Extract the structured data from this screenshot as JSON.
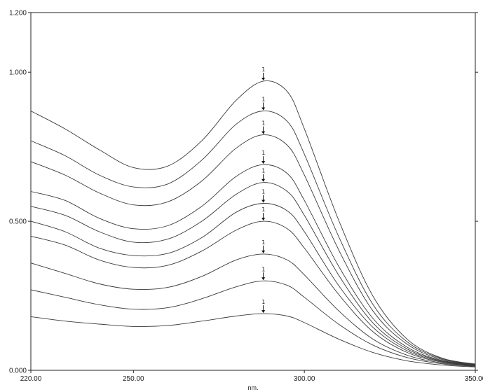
{
  "chart_data": {
    "type": "line",
    "title": "",
    "xlabel": "nm.",
    "ylabel": "",
    "xlim": [
      220,
      350
    ],
    "ylim": [
      0,
      1.2
    ],
    "x_ticks": [
      {
        "value": 220,
        "label": "220.00"
      },
      {
        "value": 250,
        "label": "250.00"
      },
      {
        "value": 300,
        "label": "300.00"
      },
      {
        "value": 350,
        "label": "350.00"
      }
    ],
    "y_ticks": [
      {
        "value": 0,
        "label": "0.000"
      },
      {
        "value": 0.5,
        "label": "0.500"
      },
      {
        "value": 1.0,
        "label": "1.000"
      },
      {
        "value": 1.2,
        "label": "1.200"
      }
    ],
    "peak_marker_x": 288,
    "peak_marker_text": "1",
    "grid": false,
    "legend": "none",
    "colors": {
      "line": "#3a3a3a",
      "axis": "#222222",
      "background": "#ffffff"
    },
    "series": [
      {
        "values": [
          [
            220,
            0.18
          ],
          [
            230,
            0.165
          ],
          [
            240,
            0.155
          ],
          [
            250,
            0.147
          ],
          [
            260,
            0.15
          ],
          [
            270,
            0.165
          ],
          [
            280,
            0.182
          ],
          [
            288,
            0.19
          ],
          [
            295,
            0.182
          ],
          [
            300,
            0.16
          ],
          [
            310,
            0.105
          ],
          [
            320,
            0.06
          ],
          [
            330,
            0.032
          ],
          [
            340,
            0.018
          ],
          [
            350,
            0.011
          ]
        ]
      },
      {
        "values": [
          [
            220,
            0.27
          ],
          [
            230,
            0.245
          ],
          [
            240,
            0.22
          ],
          [
            250,
            0.205
          ],
          [
            260,
            0.21
          ],
          [
            270,
            0.24
          ],
          [
            280,
            0.28
          ],
          [
            288,
            0.3
          ],
          [
            295,
            0.285
          ],
          [
            300,
            0.245
          ],
          [
            310,
            0.155
          ],
          [
            320,
            0.085
          ],
          [
            330,
            0.043
          ],
          [
            340,
            0.022
          ],
          [
            350,
            0.013
          ]
        ]
      },
      {
        "values": [
          [
            220,
            0.36
          ],
          [
            230,
            0.325
          ],
          [
            240,
            0.29
          ],
          [
            250,
            0.272
          ],
          [
            260,
            0.278
          ],
          [
            270,
            0.315
          ],
          [
            280,
            0.37
          ],
          [
            288,
            0.39
          ],
          [
            295,
            0.37
          ],
          [
            300,
            0.32
          ],
          [
            310,
            0.2
          ],
          [
            320,
            0.105
          ],
          [
            330,
            0.051
          ],
          [
            340,
            0.025
          ],
          [
            350,
            0.014
          ]
        ]
      },
      {
        "values": [
          [
            220,
            0.45
          ],
          [
            230,
            0.42
          ],
          [
            240,
            0.37
          ],
          [
            250,
            0.345
          ],
          [
            260,
            0.352
          ],
          [
            270,
            0.4
          ],
          [
            280,
            0.47
          ],
          [
            288,
            0.5
          ],
          [
            295,
            0.475
          ],
          [
            300,
            0.41
          ],
          [
            310,
            0.255
          ],
          [
            320,
            0.13
          ],
          [
            330,
            0.06
          ],
          [
            340,
            0.028
          ],
          [
            350,
            0.015
          ]
        ]
      },
      {
        "values": [
          [
            220,
            0.5
          ],
          [
            230,
            0.465
          ],
          [
            240,
            0.41
          ],
          [
            250,
            0.385
          ],
          [
            260,
            0.392
          ],
          [
            270,
            0.445
          ],
          [
            280,
            0.53
          ],
          [
            288,
            0.56
          ],
          [
            295,
            0.535
          ],
          [
            300,
            0.465
          ],
          [
            310,
            0.285
          ],
          [
            320,
            0.145
          ],
          [
            330,
            0.066
          ],
          [
            340,
            0.03
          ],
          [
            350,
            0.016
          ]
        ]
      },
      {
        "values": [
          [
            220,
            0.55
          ],
          [
            230,
            0.52
          ],
          [
            240,
            0.465
          ],
          [
            250,
            0.43
          ],
          [
            260,
            0.44
          ],
          [
            270,
            0.5
          ],
          [
            280,
            0.59
          ],
          [
            288,
            0.63
          ],
          [
            295,
            0.6
          ],
          [
            300,
            0.52
          ],
          [
            310,
            0.32
          ],
          [
            320,
            0.16
          ],
          [
            330,
            0.072
          ],
          [
            340,
            0.032
          ],
          [
            350,
            0.017
          ]
        ]
      },
      {
        "values": [
          [
            220,
            0.6
          ],
          [
            230,
            0.57
          ],
          [
            240,
            0.51
          ],
          [
            250,
            0.475
          ],
          [
            260,
            0.485
          ],
          [
            270,
            0.55
          ],
          [
            280,
            0.65
          ],
          [
            288,
            0.69
          ],
          [
            295,
            0.66
          ],
          [
            300,
            0.57
          ],
          [
            310,
            0.35
          ],
          [
            320,
            0.175
          ],
          [
            330,
            0.078
          ],
          [
            340,
            0.034
          ],
          [
            350,
            0.018
          ]
        ]
      },
      {
        "values": [
          [
            220,
            0.7
          ],
          [
            230,
            0.655
          ],
          [
            240,
            0.595
          ],
          [
            250,
            0.555
          ],
          [
            260,
            0.565
          ],
          [
            270,
            0.635
          ],
          [
            280,
            0.745
          ],
          [
            288,
            0.79
          ],
          [
            295,
            0.755
          ],
          [
            300,
            0.655
          ],
          [
            310,
            0.405
          ],
          [
            320,
            0.2
          ],
          [
            330,
            0.088
          ],
          [
            340,
            0.037
          ],
          [
            350,
            0.019
          ]
        ]
      },
      {
        "values": [
          [
            220,
            0.77
          ],
          [
            230,
            0.72
          ],
          [
            240,
            0.655
          ],
          [
            250,
            0.615
          ],
          [
            260,
            0.625
          ],
          [
            270,
            0.705
          ],
          [
            280,
            0.825
          ],
          [
            288,
            0.87
          ],
          [
            295,
            0.835
          ],
          [
            300,
            0.725
          ],
          [
            310,
            0.45
          ],
          [
            320,
            0.222
          ],
          [
            330,
            0.096
          ],
          [
            340,
            0.04
          ],
          [
            350,
            0.02
          ]
        ]
      },
      {
        "values": [
          [
            220,
            0.87
          ],
          [
            230,
            0.81
          ],
          [
            240,
            0.74
          ],
          [
            250,
            0.68
          ],
          [
            260,
            0.685
          ],
          [
            270,
            0.77
          ],
          [
            280,
            0.905
          ],
          [
            288,
            0.97
          ],
          [
            295,
            0.935
          ],
          [
            300,
            0.81
          ],
          [
            310,
            0.505
          ],
          [
            320,
            0.25
          ],
          [
            330,
            0.105
          ],
          [
            340,
            0.042
          ],
          [
            350,
            0.021
          ]
        ]
      }
    ]
  }
}
